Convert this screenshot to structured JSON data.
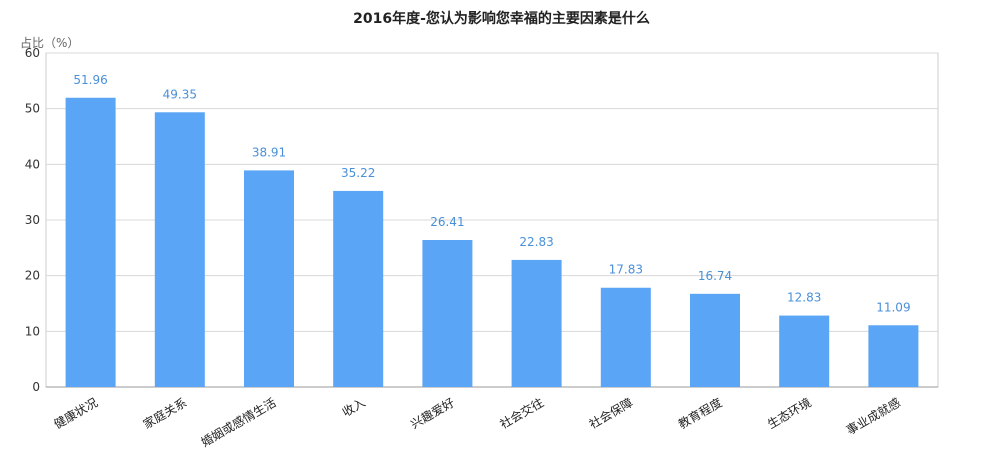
{
  "chart_data": {
    "type": "bar",
    "title": "2016年度-您认为影响您幸福的主要因素是什么",
    "ylabel": "占比（%）",
    "xlabel": "",
    "ylim": [
      0,
      60
    ],
    "yticks": [
      0,
      10,
      20,
      30,
      40,
      50,
      60
    ],
    "grid": true,
    "bar_color": "#5aa5f5",
    "value_label_color": "#4a90d9",
    "categories": [
      "健康状况",
      "家庭关系",
      "婚姻或感情生活",
      "收入",
      "兴趣爱好",
      "社会交往",
      "社会保障",
      "教育程度",
      "生态环境",
      "事业成就感"
    ],
    "values": [
      51.96,
      49.35,
      38.91,
      35.22,
      26.41,
      22.83,
      17.83,
      16.74,
      12.83,
      11.09
    ]
  }
}
